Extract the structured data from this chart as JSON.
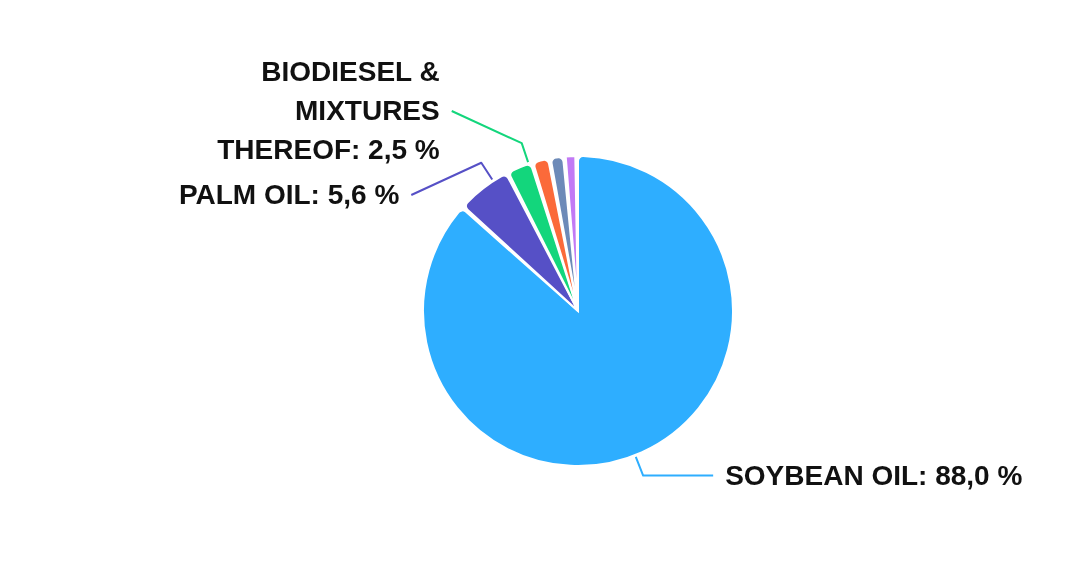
{
  "chart_data": {
    "type": "pie",
    "categories": [
      "SOYBEAN OIL",
      "PALM OIL",
      "BIODIESEL & MIXTURES THEREOF",
      null,
      null,
      null
    ],
    "values": [
      88.0,
      5.6,
      2.5,
      1.6,
      1.3,
      1.0
    ],
    "colors": [
      "#2eaeff",
      "#5650c6",
      "#13d67c",
      "#fb6a3a",
      "#6d8ab8",
      "#c27af5"
    ],
    "value_labels": [
      "88,0 %",
      "5,6 %",
      "2,5 %",
      null,
      null,
      null
    ]
  }
}
